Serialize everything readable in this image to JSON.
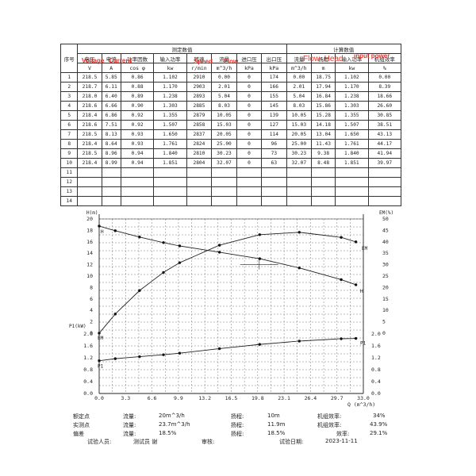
{
  "table": {
    "col_headers": [
      "序号",
      "电压",
      "电流",
      "功率因数",
      "输入功率",
      "转速",
      "流量",
      "进口压",
      "出口压",
      "流量",
      "扬程",
      "输入功率",
      "机组效率"
    ],
    "group_measured": "测定数值",
    "group_calc": "计算数值",
    "units": [
      "",
      "V",
      "A",
      "cos φ",
      "kw",
      "r/min",
      "m^3/h",
      "kPa",
      "kPa",
      "m^3/h",
      "m",
      "kw",
      "%"
    ],
    "rows": [
      [
        "1",
        "218.5",
        "5.85",
        "0.86",
        "1.102",
        "2910",
        "0.00",
        "0",
        "174",
        "0.00",
        "18.75",
        "1.102",
        "0.00"
      ],
      [
        "2",
        "218.7",
        "6.11",
        "0.88",
        "1.170",
        "2903",
        "2.01",
        "0",
        "166",
        "2.01",
        "17.94",
        "1.170",
        "8.39"
      ],
      [
        "3",
        "218.0",
        "6.40",
        "0.89",
        "1.238",
        "2893",
        "5.04",
        "0",
        "155",
        "5.04",
        "16.84",
        "1.238",
        "18.66"
      ],
      [
        "4",
        "218.6",
        "6.66",
        "0.90",
        "1.303",
        "2885",
        "8.03",
        "0",
        "145",
        "8.03",
        "15.86",
        "1.303",
        "26.60"
      ],
      [
        "5",
        "218.4",
        "6.86",
        "0.92",
        "1.355",
        "2879",
        "10.05",
        "0",
        "139",
        "10.05",
        "15.28",
        "1.355",
        "30.85"
      ],
      [
        "6",
        "218.6",
        "7.51",
        "0.92",
        "1.507",
        "2858",
        "15.03",
        "0",
        "127",
        "15.03",
        "14.18",
        "1.507",
        "38.51"
      ],
      [
        "7",
        "218.5",
        "8.13",
        "0.93",
        "1.650",
        "2837",
        "20.05",
        "0",
        "114",
        "20.05",
        "13.04",
        "1.650",
        "43.13"
      ],
      [
        "8",
        "218.4",
        "8.64",
        "0.93",
        "1.761",
        "2824",
        "25.00",
        "0",
        "96",
        "25.00",
        "11.43",
        "1.761",
        "44.17"
      ],
      [
        "9",
        "218.5",
        "8.96",
        "0.94",
        "1.840",
        "2810",
        "30.23",
        "0",
        "73",
        "30.23",
        "9.38",
        "1.840",
        "41.94"
      ],
      [
        "10",
        "218.4",
        "8.99",
        "0.94",
        "1.851",
        "2804",
        "32.07",
        "0",
        "63",
        "32.07",
        "8.48",
        "1.851",
        "39.97"
      ],
      [
        "11",
        "",
        "",
        "",
        "",
        "",
        "",
        "",
        "",
        "",
        "",
        "",
        ""
      ],
      [
        "12",
        "",
        "",
        "",
        "",
        "",
        "",
        "",
        "",
        "",
        "",
        "",
        ""
      ],
      [
        "13",
        "",
        "",
        "",
        "",
        "",
        "",
        "",
        "",
        "",
        "",
        "",
        ""
      ],
      [
        "14",
        "",
        "",
        "",
        "",
        "",
        "",
        "",
        "",
        "",
        "",
        "",
        ""
      ]
    ]
  },
  "annotations": {
    "voltage": "Voltage",
    "current": "Current",
    "speed": "Speed",
    "flow": "Flow",
    "flow_head": "Flow ,Head",
    "input_power": "input power"
  },
  "chart_data": {
    "type": "line",
    "x": [
      0.0,
      2.01,
      5.04,
      8.03,
      10.05,
      15.03,
      20.05,
      25.0,
      30.23,
      32.07
    ],
    "xlabel": "Q (m^3/h)",
    "xticks": [
      "0.0",
      "3.3",
      "6.6",
      "9.9",
      "13.2",
      "16.5",
      "19.8",
      "23.1",
      "26.4",
      "29.7",
      "33.0"
    ],
    "xlim": [
      0,
      33
    ],
    "left_axis_H": {
      "label": "H(m)",
      "ticks": [
        "0",
        "2",
        "4",
        "6",
        "8",
        "10",
        "12",
        "14",
        "16",
        "18",
        "20"
      ],
      "ylim": [
        0,
        20
      ]
    },
    "left_axis_P": {
      "label": "P1(kW)",
      "ticks": [
        "0.0",
        "0.4",
        "0.8",
        "1.2",
        "1.6",
        "2.0"
      ],
      "ylim": [
        0.0,
        2.0
      ]
    },
    "right_axis_eff": {
      "label": "EM(%)",
      "ticks": [
        "0",
        "5",
        "10",
        "15",
        "20",
        "25",
        "30",
        "35",
        "40",
        "45",
        "50"
      ],
      "ylim": [
        0,
        50
      ]
    },
    "right_axis_P": {
      "ticks": [
        "0.0",
        "0.4",
        "0.8",
        "1.2",
        "1.6",
        "2.0"
      ]
    },
    "series": [
      {
        "name": "H",
        "values": [
          18.75,
          17.94,
          16.84,
          15.86,
          15.28,
          14.18,
          13.04,
          11.43,
          9.38,
          8.48
        ]
      },
      {
        "name": "EM",
        "values": [
          0.0,
          8.39,
          18.66,
          26.6,
          30.85,
          38.51,
          43.13,
          44.17,
          41.94,
          39.97
        ]
      },
      {
        "name": "P1",
        "values": [
          1.102,
          1.17,
          1.238,
          1.303,
          1.355,
          1.507,
          1.65,
          1.761,
          1.84,
          1.851
        ]
      }
    ],
    "curve_labels": {
      "H_left": "H",
      "H_right": "H",
      "EM_left": "EM",
      "EM_right": "EM",
      "P_left": "P1",
      "P_right": "P1"
    },
    "grid": true
  },
  "footer": {
    "rated_label": "额定点",
    "actual_label": "实测点",
    "deviation_label": "偏差",
    "flow_label": "流量:",
    "rated_flow": "20m^3/h",
    "actual_flow": "23.7m^3/h",
    "dev_flow": "18.5%",
    "head_label": "扬程:",
    "rated_head": "10m",
    "actual_head": "11.9m",
    "dev_head": "18.5%",
    "eff_label": "机组效率:",
    "rated_eff": "34%",
    "actual_eff_label": "机组效率:",
    "actual_eff": "43.9%",
    "dev_eff_label": "效率:",
    "dev_eff": "29.1%",
    "tester_label": "试验人员:",
    "tester_name": "测试员 谢",
    "reviewer_label": "审核:",
    "date_label": "试验日期:",
    "date": "2023-11-11"
  }
}
